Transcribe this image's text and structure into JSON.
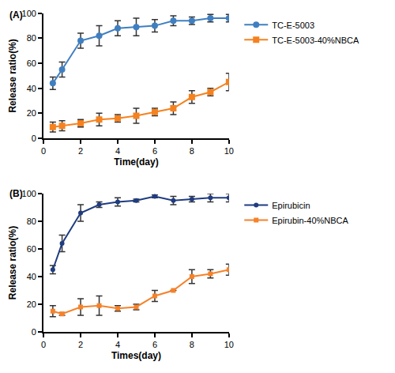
{
  "chart_data": [
    {
      "type": "line",
      "title": "(A)",
      "x_label": "Time(day)",
      "y_label": "Release ratio(%)",
      "x": [
        0.5,
        1,
        2,
        3,
        4,
        5,
        6,
        7,
        8,
        9,
        10
      ],
      "series": [
        {
          "name": "TC-E-5003",
          "color": "#3f7fc0",
          "marker": "circle",
          "line_style": "solid",
          "values": [
            44,
            55,
            78,
            82,
            88,
            89,
            90,
            94,
            94,
            96,
            96
          ],
          "errors": [
            5,
            6,
            6,
            8,
            6,
            7,
            5,
            4,
            3,
            3,
            3
          ]
        },
        {
          "name": "TC-E-5003-40%NBCA",
          "color": "#f5821f",
          "marker": "square",
          "line_style": "solid",
          "values": [
            9,
            10,
            12,
            15,
            16,
            18,
            21,
            24,
            33,
            37,
            45
          ],
          "errors": [
            4,
            4,
            3,
            5,
            3,
            6,
            3,
            5,
            5,
            3,
            7
          ]
        }
      ],
      "xlim": [
        0,
        10
      ],
      "xticks": [
        0,
        2,
        4,
        6,
        8,
        10
      ],
      "ylim": [
        0,
        100
      ],
      "yticks": [
        0,
        20,
        40,
        60,
        80,
        100
      ],
      "grid": false,
      "legend": "right"
    },
    {
      "type": "line",
      "title": "(B)",
      "x_label": "Times(day)",
      "y_label": "Release ratio(%)",
      "x": [
        0.5,
        1,
        2,
        3,
        4,
        5,
        6,
        7,
        8,
        9,
        10
      ],
      "series": [
        {
          "name": "Epirubicin",
          "color": "#1f3c80",
          "marker": "circle",
          "line_style": "solid",
          "values": [
            45,
            64,
            86,
            92,
            94,
            95,
            98,
            95,
            96,
            97,
            97
          ],
          "errors": [
            3,
            6,
            6,
            2,
            3,
            1,
            1,
            3,
            2,
            3,
            3
          ]
        },
        {
          "name": "Epirubin-40%NBCA",
          "color": "#f5822a",
          "marker": "square",
          "line_style": "solid",
          "values": [
            15,
            13,
            18,
            19,
            17,
            18,
            26,
            30,
            40,
            42,
            45
          ],
          "errors": [
            4,
            1,
            6,
            7,
            2,
            2,
            4,
            0,
            5,
            3,
            4
          ]
        }
      ],
      "xlim": [
        0,
        10
      ],
      "xticks": [
        0,
        2,
        4,
        6,
        8,
        10
      ],
      "ylim": [
        0,
        100
      ],
      "yticks": [
        0,
        20,
        40,
        60,
        80,
        100
      ],
      "grid": false,
      "legend": "right"
    }
  ]
}
